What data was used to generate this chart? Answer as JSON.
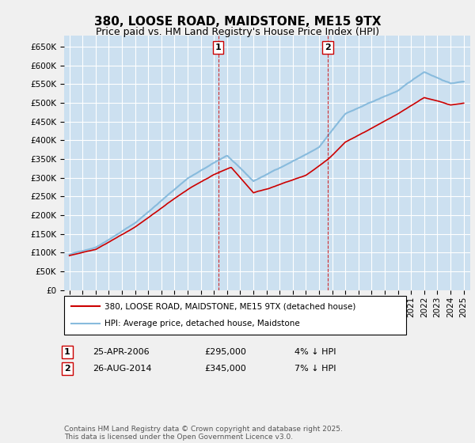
{
  "title": "380, LOOSE ROAD, MAIDSTONE, ME15 9TX",
  "subtitle": "Price paid vs. HM Land Registry's House Price Index (HPI)",
  "ylabel_ticks": [
    "£0",
    "£50K",
    "£100K",
    "£150K",
    "£200K",
    "£250K",
    "£300K",
    "£350K",
    "£400K",
    "£450K",
    "£500K",
    "£550K",
    "£600K",
    "£650K"
  ],
  "yvalues": [
    0,
    50000,
    100000,
    150000,
    200000,
    250000,
    300000,
    350000,
    400000,
    450000,
    500000,
    550000,
    600000,
    650000
  ],
  "ylim": [
    0,
    680000
  ],
  "x_start_year": 1995,
  "x_end_year": 2025,
  "marker1_year": 2006.32,
  "marker1_price": 295000,
  "marker2_year": 2014.65,
  "marker2_price": 345000,
  "legend_label_red": "380, LOOSE ROAD, MAIDSTONE, ME15 9TX (detached house)",
  "legend_label_blue": "HPI: Average price, detached house, Maidstone",
  "footer": "Contains HM Land Registry data © Crown copyright and database right 2025.\nThis data is licensed under the Open Government Licence v3.0.",
  "bg_color": "#cce0f0",
  "fig_color": "#f0f0f0",
  "red_color": "#cc0000",
  "blue_color": "#88bbdd",
  "grid_color": "#ffffff",
  "marker_box_color": "#cc0000",
  "title_fontsize": 11,
  "subtitle_fontsize": 9,
  "tick_fontsize": 7.5,
  "legend_fontsize": 7.5,
  "ann_fontsize": 8,
  "footer_fontsize": 6.5
}
